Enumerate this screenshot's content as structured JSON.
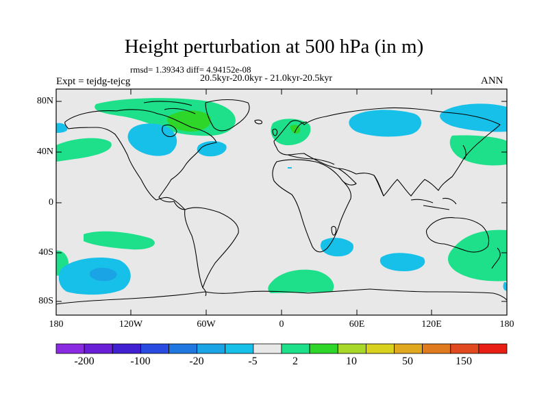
{
  "title": "Height perturbation at 500 hPa (in m)",
  "stats": {
    "rmsd_text": "rmsd= 1.39343 diff= 4.94152e-08"
  },
  "period": "20.5kyr-20.0kyr - 21.0kyr-20.5kyr",
  "experiment": "Expt = tejdg-tejcg",
  "season": "ANN",
  "axes": {
    "lat_ticks": [
      "80N",
      "40N",
      "0",
      "40S",
      "80S"
    ],
    "lon_ticks": [
      "180",
      "120W",
      "60W",
      "0",
      "60E",
      "120E",
      "180"
    ]
  },
  "colorbar": {
    "colors": [
      "#8a2be2",
      "#6a1ed6",
      "#4020d0",
      "#2a4be0",
      "#1e78e0",
      "#1aa4e6",
      "#17c0e8",
      "#e8e8e8",
      "#1ee08a",
      "#2ed62a",
      "#a8d82a",
      "#d8d21e",
      "#e0a81e",
      "#e07a1e",
      "#e04a1e",
      "#e81e14"
    ],
    "labels": [
      "-200",
      "-100",
      "-20",
      "-5",
      "2",
      "10",
      "50",
      "150"
    ]
  },
  "colors": {
    "map_background": "#e8e8e8",
    "negative_fill": "#17c0e8",
    "negative_core": "#1aa4e6",
    "positive_fill": "#1ee08a",
    "positive_core": "#2ed62a"
  }
}
